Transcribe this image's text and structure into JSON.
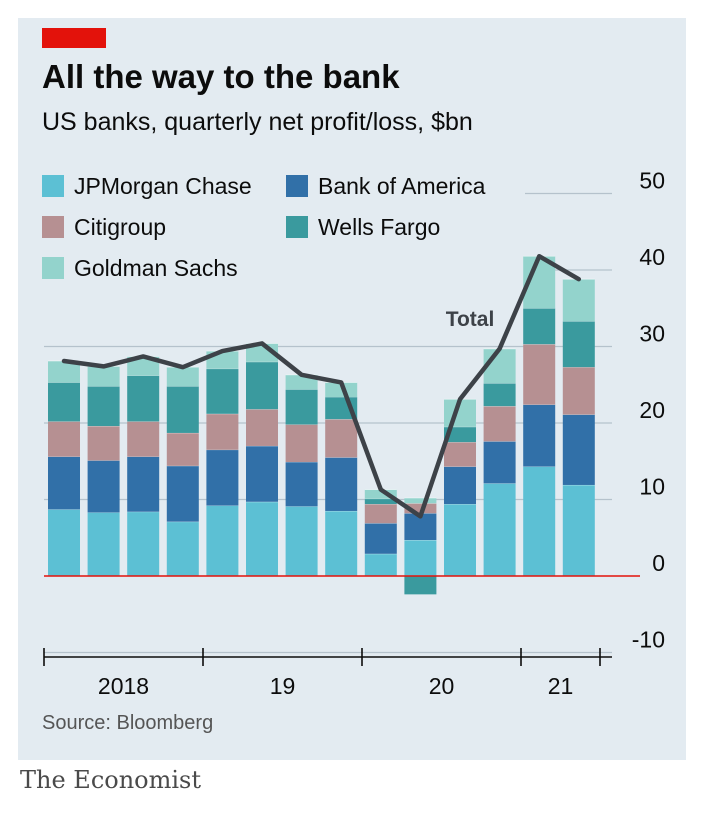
{
  "title": "All the way to the bank",
  "subtitle": "US banks, quarterly net profit/loss, $bn",
  "source": "Source: Bloomberg",
  "brand": "The Economist",
  "colors": {
    "background": "#e3ebf1",
    "accent": "#e3120b",
    "zero_line": "#e3120b",
    "total_line": "#3d4248"
  },
  "legend": [
    {
      "label": "JPMorgan Chase",
      "color": "#5cc0d4"
    },
    {
      "label": "Bank of America",
      "color": "#3170a8"
    },
    {
      "label": "Citigroup",
      "color": "#b69092"
    },
    {
      "label": "Wells Fargo",
      "color": "#3a9a9e"
    },
    {
      "label": "Goldman Sachs",
      "color": "#93d3cc"
    }
  ],
  "chart_data": {
    "type": "bar",
    "stacked": true,
    "categories": [
      "2018 Q1",
      "2018 Q2",
      "2018 Q3",
      "2018 Q4",
      "2019 Q1",
      "2019 Q2",
      "2019 Q3",
      "2019 Q4",
      "2020 Q1",
      "2020 Q2",
      "2020 Q3",
      "2020 Q4",
      "2021 Q1",
      "2021 Q2"
    ],
    "x_tick_labels": [
      "2018",
      "19",
      "20",
      "21"
    ],
    "series": [
      {
        "name": "JPMorgan Chase",
        "color": "#5cc0d4",
        "values": [
          8.7,
          8.3,
          8.4,
          7.1,
          9.2,
          9.7,
          9.1,
          8.5,
          2.9,
          4.7,
          9.4,
          12.1,
          14.3,
          11.9
        ]
      },
      {
        "name": "Bank of America",
        "color": "#3170a8",
        "values": [
          6.9,
          6.8,
          7.2,
          7.3,
          7.3,
          7.3,
          5.8,
          7.0,
          4.0,
          3.5,
          4.9,
          5.5,
          8.1,
          9.2
        ]
      },
      {
        "name": "Citigroup",
        "color": "#b69092",
        "values": [
          4.6,
          4.5,
          4.6,
          4.3,
          4.7,
          4.8,
          4.9,
          5.0,
          2.5,
          1.3,
          3.2,
          4.6,
          7.9,
          6.2
        ]
      },
      {
        "name": "Wells Fargo",
        "color": "#3a9a9e",
        "values": [
          5.1,
          5.2,
          6.0,
          6.1,
          5.9,
          6.2,
          4.6,
          2.9,
          0.7,
          -2.4,
          2.0,
          3.0,
          4.7,
          6.0
        ]
      },
      {
        "name": "Goldman Sachs",
        "color": "#93d3cc",
        "values": [
          2.8,
          2.6,
          2.5,
          2.5,
          2.3,
          2.4,
          1.9,
          1.9,
          1.2,
          0.7,
          3.6,
          4.5,
          6.8,
          5.5
        ]
      }
    ],
    "total": {
      "name": "Total",
      "values": [
        28.1,
        27.4,
        28.7,
        27.3,
        29.4,
        30.4,
        26.3,
        25.3,
        11.3,
        7.8,
        23.1,
        29.7,
        41.8,
        38.8
      ]
    },
    "ylim": [
      -10,
      50
    ],
    "yticks": [
      -10,
      0,
      10,
      20,
      30,
      40,
      50
    ],
    "grid": true,
    "legend_position": "top-left"
  }
}
